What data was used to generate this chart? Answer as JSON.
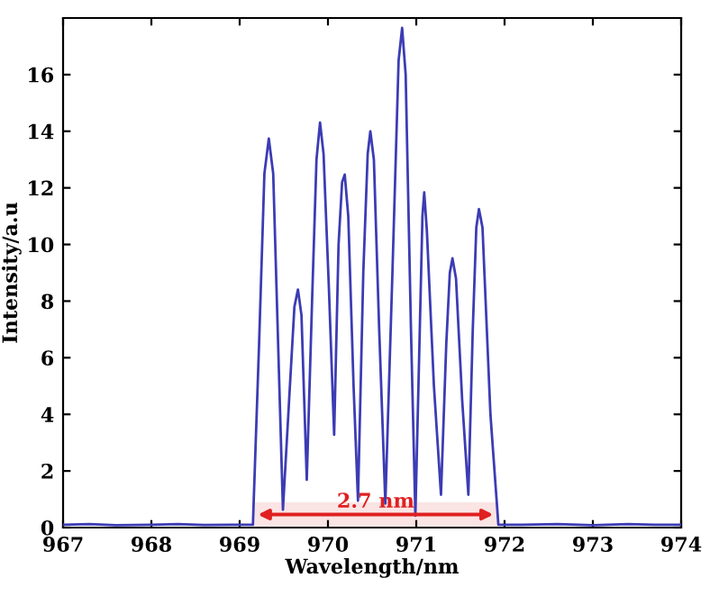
{
  "chart_data": {
    "type": "line",
    "xlabel": "Wavelength/nm",
    "ylabel": "Intensity/a.u",
    "x": [
      967,
      967.3,
      967.6,
      968,
      968.3,
      968.6,
      969,
      969.15,
      969.22,
      969.28,
      969.33,
      969.38,
      969.44,
      969.49,
      969.56,
      969.62,
      969.66,
      969.7,
      969.76,
      969.82,
      969.87,
      969.91,
      969.95,
      970.01,
      970.07,
      970.12,
      970.16,
      970.19,
      970.23,
      970.29,
      970.34,
      970.4,
      970.45,
      970.48,
      970.52,
      970.58,
      970.65,
      970.73,
      970.8,
      970.84,
      970.88,
      970.94,
      970.99,
      971.04,
      971.07,
      971.09,
      971.12,
      971.2,
      971.28,
      971.34,
      971.38,
      971.41,
      971.45,
      971.52,
      971.59,
      971.64,
      971.68,
      971.71,
      971.75,
      971.84,
      971.93,
      972.2,
      972.6,
      973,
      973.4,
      973.7,
      974
    ],
    "series": [
      {
        "color": "#3c3cb4",
        "values": [
          0.1,
          0.12,
          0.08,
          0.1,
          0.12,
          0.09,
          0.1,
          0.1,
          6.5,
          12.5,
          13.74,
          12.5,
          6,
          0.63,
          4.5,
          7.8,
          8.41,
          7.5,
          1.69,
          8,
          13,
          14.31,
          13.2,
          8.5,
          3.28,
          10,
          12.2,
          12.47,
          11,
          5,
          0.95,
          9,
          13.2,
          14,
          13,
          7,
          0.85,
          9,
          16.5,
          17.65,
          16,
          7,
          0.42,
          7,
          11,
          11.84,
          10.5,
          5,
          1.16,
          6.5,
          9,
          9.51,
          8.8,
          4.5,
          1.16,
          7,
          10.6,
          11.25,
          10.6,
          4,
          0.1,
          0.1,
          0.12,
          0.08,
          0.12,
          0.1,
          0.1
        ]
      }
    ],
    "xlim": [
      967,
      974
    ],
    "ylim": [
      0,
      18
    ],
    "xticks": [
      967,
      968,
      969,
      970,
      971,
      972,
      973,
      974
    ],
    "yticks": [
      0,
      2,
      4,
      6,
      8,
      10,
      12,
      14,
      16
    ],
    "bands": [
      {
        "axis": "x",
        "from": 969.15,
        "to": 971.93,
        "label": "2.7 nm",
        "color": "#e02020"
      }
    ],
    "grid": false,
    "legend": false,
    "marker": "none",
    "line_style": "solid"
  }
}
